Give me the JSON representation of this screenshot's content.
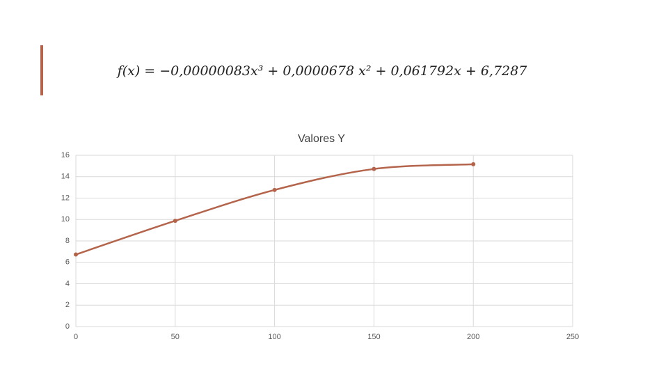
{
  "formula": "f(x) = −0,00000083x³ + 0,0000678 x² + 0,061792x + 6,7287",
  "chart_data": {
    "type": "line",
    "title": "Valores Y",
    "x": [
      0,
      50,
      100,
      150,
      200
    ],
    "series": [
      {
        "name": "Valores Y",
        "color": "#b4644b",
        "values": [
          6.73,
          9.88,
          12.76,
          14.72,
          15.16
        ]
      }
    ],
    "xlim": [
      0,
      250
    ],
    "xticks": [
      0,
      50,
      100,
      150,
      200,
      250
    ],
    "ylim": [
      0,
      16
    ],
    "yticks": [
      0,
      2,
      4,
      6,
      8,
      10,
      12,
      14,
      16
    ],
    "grid": true,
    "smooth": true
  }
}
